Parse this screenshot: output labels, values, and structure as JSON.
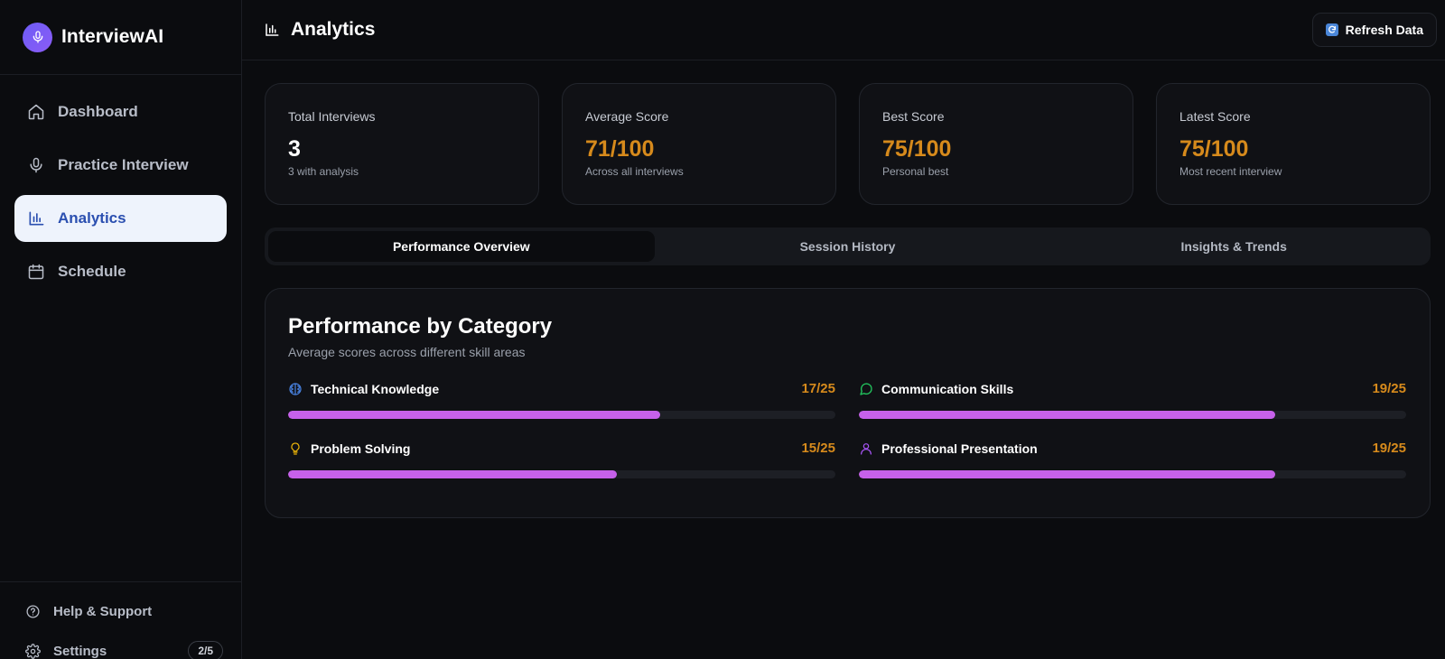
{
  "brand": {
    "name": "InterviewAI"
  },
  "sidebar": {
    "items": [
      {
        "label": "Dashboard",
        "icon": "home-icon"
      },
      {
        "label": "Practice Interview",
        "icon": "mic-icon"
      },
      {
        "label": "Analytics",
        "icon": "bar-chart-icon",
        "active": true
      },
      {
        "label": "Schedule",
        "icon": "calendar-icon"
      }
    ],
    "bottom": {
      "help_label": "Help & Support",
      "settings_label": "Settings",
      "settings_badge": "2/5"
    }
  },
  "header": {
    "title": "Analytics",
    "refresh_label": "Refresh Data"
  },
  "stats": [
    {
      "label": "Total Interviews",
      "value": "3",
      "sub": "3 with analysis"
    },
    {
      "label": "Average Score",
      "value": "71/100",
      "sub": "Across all interviews"
    },
    {
      "label": "Best Score",
      "value": "75/100",
      "sub": "Personal best"
    },
    {
      "label": "Latest Score",
      "value": "75/100",
      "sub": "Most recent interview"
    }
  ],
  "tabs": [
    {
      "label": "Performance Overview",
      "active": true
    },
    {
      "label": "Session History"
    },
    {
      "label": "Insights & Trends"
    }
  ],
  "performance": {
    "title": "Performance by Category",
    "subtitle": "Average scores across different skill areas",
    "categories": [
      {
        "name": "Technical Knowledge",
        "score": "17/25",
        "value": 17,
        "max": 25,
        "icon": "brain-icon",
        "icon_color": "#4a86e8"
      },
      {
        "name": "Communication Skills",
        "score": "19/25",
        "value": 19,
        "max": 25,
        "icon": "chat-bubble-icon",
        "icon_color": "#22c55e"
      },
      {
        "name": "Problem Solving",
        "score": "15/25",
        "value": 15,
        "max": 25,
        "icon": "lightbulb-icon",
        "icon_color": "#eab308"
      },
      {
        "name": "Professional Presentation",
        "score": "19/25",
        "value": 19,
        "max": 25,
        "icon": "user-icon",
        "icon_color": "#a855f7"
      }
    ]
  },
  "colors": {
    "accent_score": "#d68a1c",
    "bar_fill": "#c661ea",
    "active_nav_bg": "#eef3fc",
    "active_nav_text": "#2b4fb0"
  }
}
